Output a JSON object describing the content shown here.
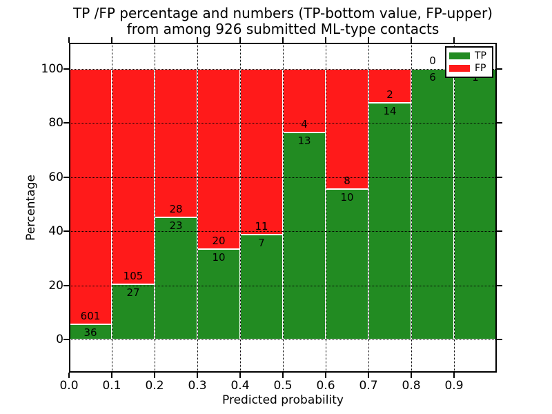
{
  "title": {
    "line1": "TP /FP percentage and numbers (TP-bottom value, FP-upper)",
    "line2": "from among 926 submitted ML-type contacts"
  },
  "axes": {
    "xlabel": "Predicted probability",
    "ylabel": "Percentage",
    "yticks": [
      0,
      20,
      40,
      60,
      80,
      100
    ],
    "xticks": [
      "0.0",
      "0.1",
      "0.2",
      "0.3",
      "0.4",
      "0.5",
      "0.6",
      "0.7",
      "0.8",
      "0.9"
    ]
  },
  "legend": {
    "entries": [
      {
        "label": "TP",
        "color": "#228B22"
      },
      {
        "label": "FP",
        "color": "#FF1A1A"
      }
    ]
  },
  "colors": {
    "tp": "#228B22",
    "fp": "#FF1A1A",
    "grid": "#000000"
  },
  "chart_data": {
    "type": "bar",
    "stacked": true,
    "normalized": "each bar scaled to 100%",
    "title": "TP /FP percentage and numbers (TP-bottom value, FP-upper) from among 926 submitted ML-type contacts",
    "xlabel": "Predicted probability",
    "ylabel": "Percentage",
    "categories": [
      "0.0-0.1",
      "0.1-0.2",
      "0.2-0.3",
      "0.3-0.4",
      "0.4-0.5",
      "0.5-0.6",
      "0.6-0.7",
      "0.7-0.8",
      "0.8-0.9",
      "0.9-1.0"
    ],
    "series": [
      {
        "name": "TP",
        "counts": [
          36,
          27,
          23,
          10,
          7,
          13,
          10,
          14,
          6,
          1
        ]
      },
      {
        "name": "FP",
        "counts": [
          601,
          105,
          28,
          20,
          11,
          4,
          8,
          2,
          0,
          0
        ]
      }
    ],
    "total_submitted": 926,
    "xlim": [
      0.0,
      1.0
    ],
    "ytick_range": [
      0,
      100
    ],
    "grid": true,
    "legend_position": "upper right"
  }
}
